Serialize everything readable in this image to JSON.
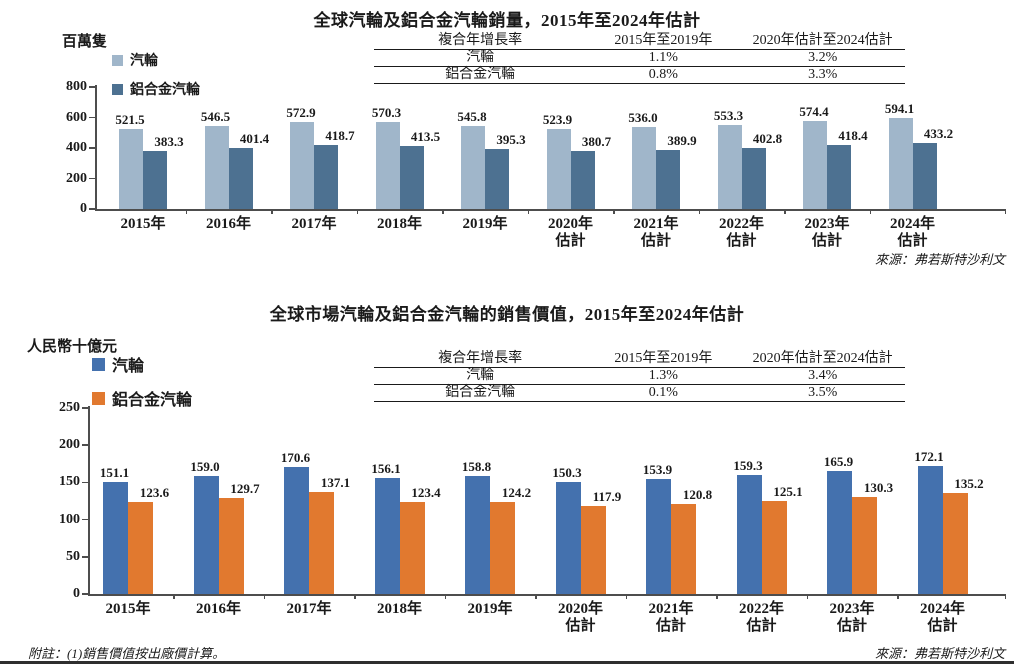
{
  "page": {
    "footnote": "附註：(1)銷售價值按出廠價計算。"
  },
  "chart_data": [
    {
      "type": "bar",
      "title": "全球汽輪及鋁合金汽輪銷量，2015年至2024年估計",
      "ylabel": "百萬隻",
      "ylim": [
        0,
        800
      ],
      "yticks": [
        0,
        200,
        400,
        600,
        800
      ],
      "grid": false,
      "legend_position": "top-left",
      "categories": [
        "2015年",
        "2016年",
        "2017年",
        "2018年",
        "2019年",
        "2020年估計",
        "2021年估計",
        "2022年估計",
        "2023年估計",
        "2024年估計"
      ],
      "series": [
        {
          "name": "汽輪",
          "color": "#a0b6ca",
          "values": [
            521.5,
            546.5,
            572.9,
            570.3,
            545.8,
            523.9,
            536.0,
            553.3,
            574.4,
            594.1
          ]
        },
        {
          "name": "鋁合金汽輪",
          "color": "#4d7191",
          "values": [
            383.3,
            401.4,
            418.7,
            413.5,
            395.3,
            380.7,
            389.9,
            402.8,
            418.4,
            433.2
          ]
        }
      ],
      "cagr_table": {
        "col1_header": "複合年增長率",
        "columns": [
          "2015年至2019年",
          "2020年估計至2024估計"
        ],
        "rows": [
          {
            "label": "汽輪",
            "values": [
              "1.1%",
              "3.2%"
            ]
          },
          {
            "label": "鋁合金汽輪",
            "values": [
              "0.8%",
              "3.3%"
            ]
          }
        ]
      },
      "source": "來源：弗若斯特沙利文"
    },
    {
      "type": "bar",
      "title": "全球市場汽輪及鋁合金汽輪的銷售價值，2015年至2024年估計",
      "ylabel": "人民幣十億元",
      "ylim": [
        0,
        250
      ],
      "yticks": [
        0,
        50,
        100,
        150,
        200,
        250
      ],
      "grid": false,
      "legend_position": "top-left",
      "categories": [
        "2015年",
        "2016年",
        "2017年",
        "2018年",
        "2019年",
        "2020年估計",
        "2021年估計",
        "2022年估計",
        "2023年估計",
        "2024年估計"
      ],
      "series": [
        {
          "name": "汽輪",
          "color": "#4471ae",
          "values": [
            151.1,
            159.0,
            170.6,
            156.1,
            158.8,
            150.3,
            153.9,
            159.3,
            165.9,
            172.1
          ]
        },
        {
          "name": "鋁合金汽輪",
          "color": "#e1792f",
          "values": [
            123.6,
            129.7,
            137.1,
            123.4,
            124.2,
            117.9,
            120.8,
            125.1,
            130.3,
            135.2
          ]
        }
      ],
      "cagr_table": {
        "col1_header": "複合年增長率",
        "columns": [
          "2015年至2019年",
          "2020年估計至2024估計"
        ],
        "rows": [
          {
            "label": "汽輪",
            "values": [
              "1.3%",
              "3.4%"
            ]
          },
          {
            "label": "鋁合金汽輪",
            "values": [
              "0.1%",
              "3.5%"
            ]
          }
        ]
      },
      "source": "來源：弗若斯特沙利文"
    }
  ]
}
